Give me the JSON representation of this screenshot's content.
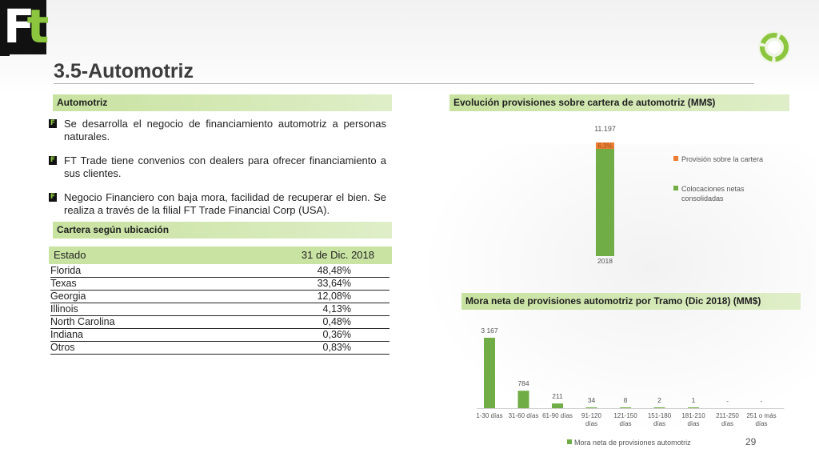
{
  "slide": {
    "title": "3.5-Automotriz",
    "page_number": "29",
    "logo_text_f": "F",
    "logo_text_t": "t"
  },
  "left": {
    "section1_title": "Automotriz",
    "bullet_icon_text": "F",
    "bullets": [
      "Se desarrolla el negocio de financiamiento automotriz a personas naturales.",
      "FT Trade tiene convenios con dealers para ofrecer financiamiento a sus clientes.",
      "Negocio Financiero con baja mora, facilidad de recuperar el bien.  Se realiza a través de la filial FT Trade Financial Corp (USA)."
    ],
    "section2_title": "Cartera según ubicación",
    "table": {
      "headers": [
        "Estado",
        "31 de Dic. 2018"
      ],
      "rows": [
        [
          "Florida",
          "48,48%"
        ],
        [
          "Texas",
          "33,64%"
        ],
        [
          "Georgia",
          "12,08%"
        ],
        [
          "Illinois",
          "4,13%"
        ],
        [
          "North Carolina",
          "0,48%"
        ],
        [
          "Indiana",
          "0,36%"
        ],
        [
          "Otros",
          "0,83%"
        ]
      ]
    }
  },
  "colors": {
    "accent_green": "#70ad47",
    "accent_orange": "#ed7d31",
    "section_bar": "#c9e3a3"
  },
  "chart_data": [
    {
      "type": "bar",
      "stacked": true,
      "title": "Evolución provisiones sobre cartera de automotriz (MM$)",
      "categories": [
        "2018"
      ],
      "series": [
        {
          "name": "Colocaciones netas consolidadas",
          "values": [
            11197
          ],
          "color": "#70ad47"
        },
        {
          "name": "Provisión sobre la cartera",
          "values": [
            0.063
          ],
          "color": "#ed7d31",
          "display": "6,3%"
        }
      ],
      "total_label": "11.197",
      "legend_position": "right"
    },
    {
      "type": "bar",
      "title": "Mora neta de provisiones automotriz por Tramo (Dic 2018) (MM$)",
      "categories": [
        "1-30 días",
        "31-60 días",
        "61-90 días",
        "91-120 días",
        "121-150 días",
        "151-180 días",
        "181-210 días",
        "211-250 días",
        "251 o más días"
      ],
      "series": [
        {
          "name": "Mora neta de provisiones automotriz",
          "values": [
            3167,
            784,
            211,
            34,
            8,
            2,
            1,
            0,
            0
          ],
          "color": "#70ad47"
        }
      ],
      "data_labels": [
        "3 167",
        "784",
        "211",
        "34",
        "8",
        "2",
        "1",
        "-",
        "-"
      ],
      "legend_position": "bottom"
    }
  ]
}
